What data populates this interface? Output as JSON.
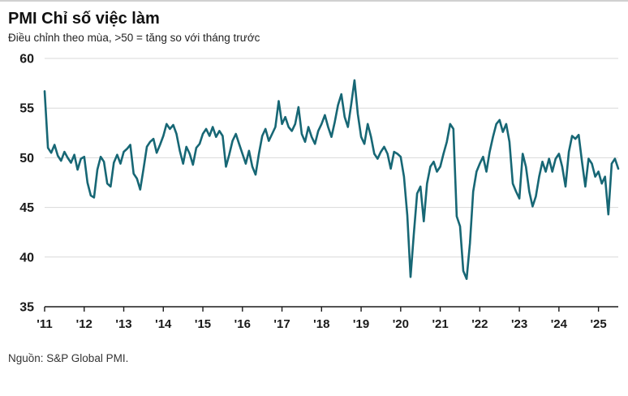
{
  "header": {
    "title": "PMI Chỉ số việc làm",
    "subtitle": "Điều chỉnh theo mùa, >50 = tăng so với tháng trước"
  },
  "footer": {
    "source": "Nguồn: S&P Global PMI."
  },
  "chart_data": {
    "type": "line",
    "title": "PMI Chỉ số việc làm",
    "subtitle": "Điều chỉnh theo mùa, >50 = tăng so với tháng trước",
    "xlabel": "",
    "ylabel": "",
    "ylim": [
      35,
      60
    ],
    "yticks": [
      35,
      40,
      45,
      50,
      55,
      60
    ],
    "grid": "horizontal",
    "legend": "none",
    "line_color": "#176775",
    "grid_color": "#d9d9d9",
    "axis_color": "#1a1a1a",
    "xticks": [
      {
        "label": "'11",
        "year": 2011
      },
      {
        "label": "'12",
        "year": 2012
      },
      {
        "label": "'13",
        "year": 2013
      },
      {
        "label": "'14",
        "year": 2014
      },
      {
        "label": "'15",
        "year": 2015
      },
      {
        "label": "'16",
        "year": 2016
      },
      {
        "label": "'17",
        "year": 2017
      },
      {
        "label": "'18",
        "year": 2018
      },
      {
        "label": "'19",
        "year": 2019
      },
      {
        "label": "'20",
        "year": 2020
      },
      {
        "label": "'21",
        "year": 2021
      },
      {
        "label": "'22",
        "year": 2022
      },
      {
        "label": "'23",
        "year": 2023
      },
      {
        "label": "'24",
        "year": 2024
      },
      {
        "label": "'25",
        "year": 2025
      }
    ],
    "series": [
      {
        "name": "PMI việc làm (điều chỉnh theo mùa)",
        "start": "2011-01",
        "frequency": "monthly",
        "values": [
          56.7,
          51.0,
          50.5,
          51.3,
          50.2,
          49.7,
          50.6,
          50.0,
          49.5,
          50.3,
          48.8,
          49.9,
          50.1,
          47.5,
          46.2,
          46.0,
          48.8,
          50.1,
          49.6,
          47.4,
          47.1,
          49.5,
          50.3,
          49.4,
          50.6,
          50.9,
          51.3,
          48.4,
          47.9,
          46.8,
          48.9,
          51.1,
          51.6,
          51.9,
          50.5,
          51.3,
          52.2,
          53.4,
          52.9,
          53.3,
          52.4,
          50.7,
          49.4,
          51.1,
          50.4,
          49.3,
          51.0,
          51.4,
          52.4,
          52.9,
          52.2,
          53.1,
          52.1,
          52.7,
          52.2,
          49.1,
          50.3,
          51.7,
          52.4,
          51.4,
          50.4,
          49.4,
          50.7,
          49.1,
          48.3,
          50.4,
          52.2,
          52.9,
          51.7,
          52.4,
          53.1,
          55.7,
          53.4,
          54.1,
          53.1,
          52.7,
          53.4,
          55.1,
          52.4,
          51.6,
          53.1,
          52.1,
          51.4,
          52.7,
          53.4,
          54.3,
          53.1,
          52.1,
          53.6,
          55.3,
          56.4,
          54.1,
          53.1,
          55.4,
          57.8,
          54.4,
          52.1,
          51.4,
          53.4,
          52.1,
          50.4,
          49.9,
          50.6,
          51.1,
          50.4,
          48.9,
          50.6,
          50.4,
          50.1,
          48.1,
          44.2,
          38.0,
          42.4,
          46.4,
          47.1,
          43.6,
          47.4,
          49.1,
          49.6,
          48.6,
          49.1,
          50.4,
          51.6,
          53.4,
          52.9,
          44.1,
          43.1,
          38.6,
          37.8,
          41.4,
          46.6,
          48.6,
          49.4,
          50.1,
          48.6,
          50.6,
          52.1,
          53.4,
          53.8,
          52.6,
          53.4,
          51.6,
          47.4,
          46.6,
          45.9,
          50.4,
          49.1,
          46.6,
          45.1,
          46.1,
          48.1,
          49.6,
          48.6,
          49.9,
          48.6,
          49.9,
          50.4,
          49.1,
          47.1,
          50.6,
          52.2,
          51.9,
          52.3,
          49.6,
          47.1,
          49.9,
          49.4,
          48.1,
          48.6,
          47.4,
          48.1,
          44.3,
          49.4,
          49.9,
          48.9
        ]
      }
    ]
  }
}
